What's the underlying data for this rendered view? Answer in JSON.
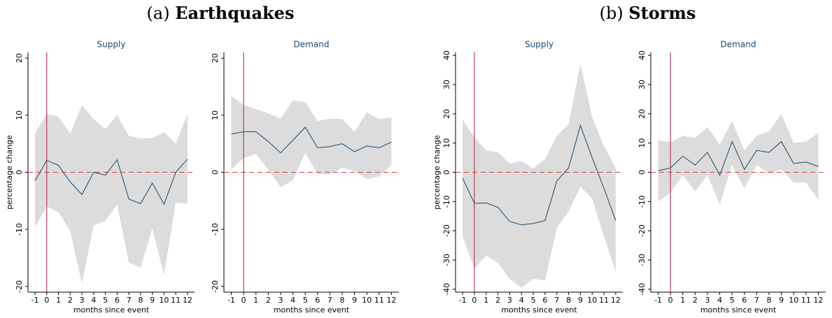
{
  "panel_groups": [
    {
      "label": "(a)",
      "title": "Earthquakes"
    },
    {
      "label": "(b)",
      "title": "Storms"
    }
  ],
  "chart_data": [
    {
      "type": "line",
      "title": "Supply",
      "ylabel": "percentage change",
      "xlabel": "months since event",
      "x": [
        -1,
        0,
        1,
        2,
        3,
        4,
        5,
        6,
        7,
        8,
        9,
        10,
        11,
        12
      ],
      "values": [
        -1.5,
        2.1,
        1.2,
        -1.7,
        -3.9,
        0,
        -0.5,
        2.2,
        -4.7,
        -5.5,
        -1.9,
        -5.6,
        0,
        2.3
      ],
      "ci_upper": [
        6.8,
        10.2,
        9.7,
        6.8,
        11.8,
        9.3,
        7.6,
        10,
        6.4,
        5.9,
        6,
        7,
        5,
        10.2
      ],
      "ci_lower": [
        -9.6,
        -6,
        -7,
        -10.3,
        -19.5,
        -9.3,
        -8.5,
        -5.6,
        -15.8,
        -16.7,
        -9.8,
        -18,
        -5.3,
        -5.5
      ],
      "xlim": [
        -1.6,
        12.6
      ],
      "xticks": [
        -1,
        0,
        1,
        2,
        3,
        4,
        5,
        6,
        7,
        8,
        9,
        10,
        11,
        12
      ],
      "ylim": [
        -21,
        21
      ],
      "yticks": [
        -20,
        -10,
        0,
        10,
        20
      ],
      "event_x": 0,
      "ref_y": 0,
      "color": "#1a476f",
      "band_color": "#dcdcdc",
      "event_color": "#a8203a",
      "ref_color": "#e03a3e"
    },
    {
      "type": "line",
      "title": "Demand",
      "xlabel": "months since event",
      "x": [
        -1,
        0,
        1,
        2,
        3,
        4,
        5,
        6,
        7,
        8,
        9,
        10,
        11,
        12
      ],
      "values": [
        6.7,
        7.1,
        7.1,
        5.4,
        3.4,
        5.6,
        7.9,
        4.3,
        4.5,
        5.0,
        3.6,
        4.6,
        4.3,
        5.3
      ],
      "ci_upper": [
        13.4,
        11.8,
        11.1,
        10.3,
        9.4,
        12.6,
        12.3,
        9,
        9.4,
        9.3,
        7.1,
        10.5,
        9.3,
        9.6
      ],
      "ci_lower": [
        0.5,
        2.5,
        3.2,
        0.5,
        -2.6,
        -1.4,
        3.4,
        -0.3,
        -0.4,
        0.8,
        0.2,
        -1.2,
        -0.7,
        1.3
      ],
      "xlim": [
        -1.6,
        12.6
      ],
      "xticks": [
        -1,
        0,
        1,
        2,
        3,
        4,
        5,
        6,
        7,
        8,
        9,
        10,
        11,
        12
      ],
      "ylim": [
        -21,
        21
      ],
      "yticks": [
        -20,
        -10,
        0,
        10,
        20
      ],
      "event_x": 0,
      "ref_y": 0,
      "color": "#1a476f",
      "band_color": "#dcdcdc",
      "event_color": "#a8203a",
      "ref_color": "#e03a3e"
    },
    {
      "type": "line",
      "title": "Supply",
      "ylabel": "percentage change",
      "xlabel": "months since event",
      "x": [
        -1,
        0,
        1,
        2,
        3,
        4,
        5,
        6,
        7,
        8,
        9,
        10,
        11,
        12
      ],
      "values": [
        -2,
        -10.6,
        -10.5,
        -12,
        -16.8,
        -18,
        -17.5,
        -16.5,
        -3,
        1.5,
        16,
        5,
        -5.5,
        -16.5
      ],
      "ci_upper": [
        18,
        12,
        7.5,
        6.8,
        3,
        3.8,
        1.3,
        4.5,
        12.5,
        16.5,
        37,
        19,
        9,
        1.5
      ],
      "ci_lower": [
        -22,
        -33,
        -28.5,
        -31,
        -36.5,
        -39.5,
        -36.5,
        -37,
        -19,
        -13.5,
        -5,
        -9,
        -22,
        -34
      ],
      "xlim": [
        -1.6,
        12.6
      ],
      "xticks": [
        -1,
        0,
        1,
        2,
        3,
        4,
        5,
        6,
        7,
        8,
        9,
        10,
        11,
        12
      ],
      "ylim": [
        -41,
        41
      ],
      "yticks": [
        -40,
        -30,
        -20,
        -10,
        0,
        10,
        20,
        30,
        40
      ],
      "event_x": 0,
      "ref_y": 0,
      "color": "#1a476f",
      "band_color": "#dcdcdc",
      "event_color": "#a8203a",
      "ref_color": "#e03a3e"
    },
    {
      "type": "line",
      "title": "Demand",
      "xlabel": "months since event",
      "x": [
        -1,
        0,
        1,
        2,
        3,
        4,
        5,
        6,
        7,
        8,
        9,
        10,
        11,
        12
      ],
      "values": [
        0.5,
        1.5,
        5.5,
        2.5,
        6.8,
        -1,
        10.5,
        1,
        7.5,
        6.8,
        10.5,
        3,
        3.5,
        2
      ],
      "ci_upper": [
        11,
        10.3,
        12.5,
        11.8,
        15.5,
        9.5,
        17.5,
        7.5,
        12.5,
        14,
        20,
        10,
        10.5,
        13.5
      ],
      "ci_lower": [
        -10,
        -7,
        -1,
        -6.5,
        -1,
        -11,
        2.5,
        -5.5,
        2.5,
        -0.5,
        1,
        -3.5,
        -3.5,
        -9.5
      ],
      "xlim": [
        -1.6,
        12.6
      ],
      "xticks": [
        -1,
        0,
        1,
        2,
        3,
        4,
        5,
        6,
        7,
        8,
        9,
        10,
        11,
        12
      ],
      "ylim": [
        -41,
        41
      ],
      "yticks": [
        -40,
        -30,
        -20,
        -10,
        0,
        10,
        20,
        30,
        40
      ],
      "event_x": 0,
      "ref_y": 0,
      "color": "#1a476f",
      "band_color": "#dcdcdc",
      "event_color": "#a8203a",
      "ref_color": "#e03a3e"
    }
  ]
}
